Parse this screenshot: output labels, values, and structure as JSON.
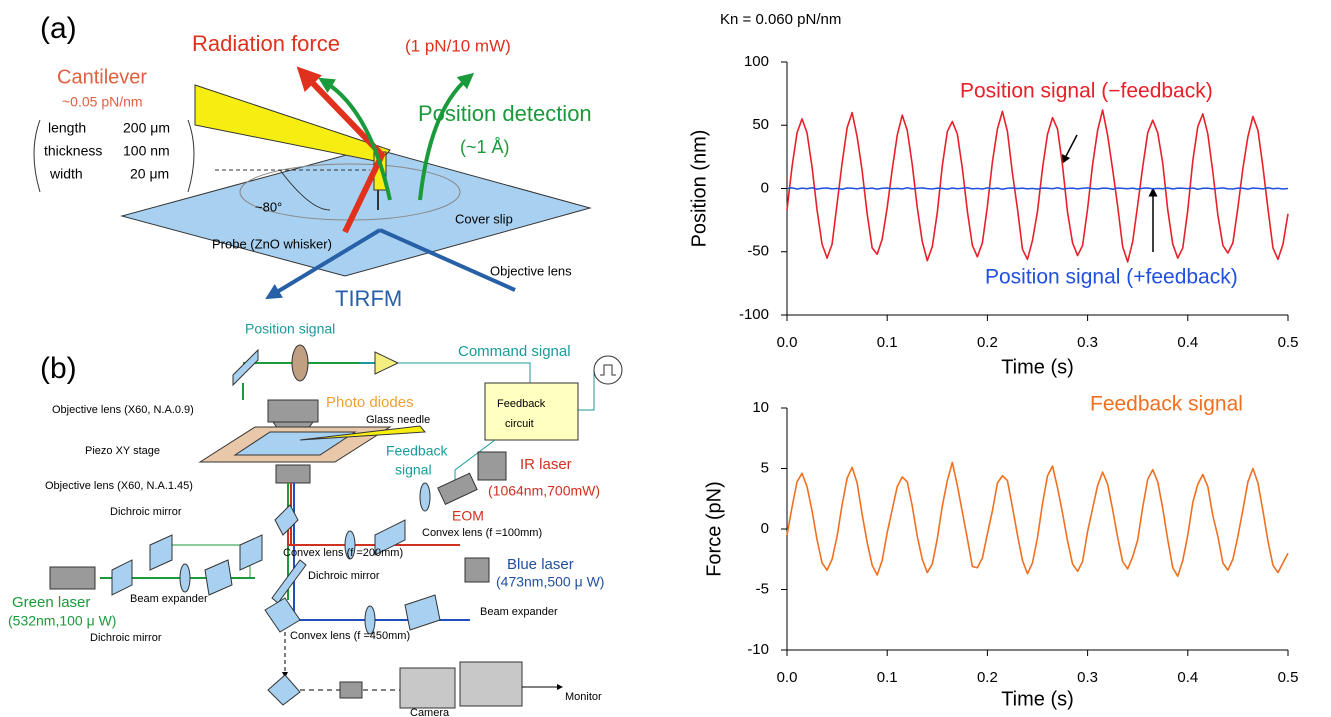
{
  "chart_data": [
    {
      "type": "line",
      "subtitle": "Kn = 0.060 pN/nm",
      "xlabel": "Time (s)",
      "ylabel": "Position (nm)",
      "xlim": [
        0,
        0.5
      ],
      "xticks": [
        {
          "value": 0,
          "label": "0.0"
        },
        0.1,
        0.2,
        0.3,
        0.4,
        0.5
      ],
      "ylim": [
        -100,
        100
      ],
      "yticks": [
        -100,
        -50,
        0,
        50,
        100
      ],
      "x": [
        0,
        0.005,
        0.01,
        0.015,
        0.02,
        0.025,
        0.03,
        0.035,
        0.04,
        0.045,
        0.05,
        0.055,
        0.06,
        0.065,
        0.07,
        0.075,
        0.08,
        0.085,
        0.09,
        0.095,
        0.1,
        0.105,
        0.11,
        0.115,
        0.12,
        0.125,
        0.13,
        0.135,
        0.14,
        0.145,
        0.15,
        0.155,
        0.16,
        0.165,
        0.17,
        0.175,
        0.18,
        0.185,
        0.19,
        0.195,
        0.2,
        0.205,
        0.21,
        0.215,
        0.22,
        0.225,
        0.23,
        0.235,
        0.24,
        0.245,
        0.25,
        0.255,
        0.26,
        0.265,
        0.27,
        0.275,
        0.28,
        0.285,
        0.29,
        0.295,
        0.3,
        0.305,
        0.31,
        0.315,
        0.32,
        0.325,
        0.33,
        0.335,
        0.34,
        0.345,
        0.35,
        0.355,
        0.36,
        0.365,
        0.37,
        0.375,
        0.38,
        0.385,
        0.39,
        0.395,
        0.4,
        0.405,
        0.41,
        0.415,
        0.42,
        0.425,
        0.43,
        0.435,
        0.44,
        0.445,
        0.45,
        0.455,
        0.46,
        0.465,
        0.47,
        0.475,
        0.48,
        0.485,
        0.49,
        0.495,
        0.5
      ],
      "series": [
        {
          "name": "Position signal (−feedback)",
          "color": "#e8202a",
          "values": [
            -17,
            17,
            44,
            55,
            44,
            17,
            -17,
            -44,
            -55,
            -44,
            -12,
            20,
            48,
            60,
            41,
            14,
            -20,
            -47,
            -52,
            -40,
            -15,
            15,
            42,
            58,
            46,
            19,
            -15,
            -42,
            -57,
            -46,
            -19,
            18,
            45,
            53,
            43,
            16,
            -18,
            -45,
            -54,
            -43,
            -14,
            21,
            47,
            61,
            45,
            12,
            -16,
            -48,
            -56,
            -41,
            -18,
            16,
            43,
            56,
            47,
            18,
            -19,
            -43,
            -53,
            -45,
            -16,
            19,
            46,
            62,
            42,
            15,
            -14,
            -46,
            -58,
            -42,
            -13,
            17,
            44,
            54,
            44,
            20,
            -17,
            -44,
            -55,
            -47,
            -17,
            22,
            49,
            59,
            43,
            13,
            -21,
            -45,
            -51,
            -43,
            -15,
            16,
            41,
            57,
            46,
            17,
            -16,
            -47,
            -56,
            -44,
            -20
          ]
        },
        {
          "name": "Position signal (+feedback)",
          "color": "#2050e0",
          "values": [
            0,
            0.5,
            -0.4,
            0.3,
            -0.2,
            0.6,
            -0.5,
            0.2,
            0.4,
            -0.3,
            0.1,
            -0.6,
            0.4,
            0.2,
            -0.3,
            0.5,
            -0.1,
            0.3,
            -0.5,
            0.2,
            0.4,
            -0.2,
            0.1,
            -0.4,
            0.6,
            -0.3,
            0.2,
            0.5,
            -0.1,
            -0.4,
            0.3,
            0.1,
            -0.5,
            0.4,
            -0.2,
            0.2,
            0.6,
            -0.3,
            0.1,
            -0.4,
            0.5,
            -0.2,
            0.3,
            -0.6,
            0.2,
            0.4,
            -0.1,
            0.3,
            -0.3,
            0.1,
            -0.5,
            0.4,
            0.2,
            -0.2,
            0.6,
            -0.4,
            0.1,
            0.3,
            -0.3,
            0.2,
            0.5,
            -0.1,
            -0.4,
            0.3,
            0.2,
            -0.6,
            0.4,
            0.1,
            -0.2,
            0.3,
            -0.5,
            0.2,
            0.4,
            -0.3,
            0.1,
            -0.2,
            0.5,
            -0.4,
            0.3,
            0.2,
            -0.1,
            0.4,
            -0.6,
            0.2,
            0.3,
            -0.3,
            0.1,
            0.5,
            -0.2,
            -0.4,
            0.3,
            0.2,
            -0.5,
            0.4,
            0.1,
            -0.3,
            0.6,
            -0.2,
            0.2,
            -0.4,
            0
          ]
        }
      ]
    },
    {
      "type": "line",
      "xlabel": "Time (s)",
      "ylabel": "Force (pN)",
      "xlim": [
        0,
        0.5
      ],
      "xticks": [
        {
          "value": 0,
          "label": "0.0"
        },
        0.1,
        0.2,
        0.3,
        0.4,
        0.5
      ],
      "ylim": [
        -10,
        10
      ],
      "yticks": [
        -10,
        -5,
        0,
        5,
        10
      ],
      "x": [
        0,
        0.005,
        0.01,
        0.015,
        0.02,
        0.025,
        0.03,
        0.035,
        0.04,
        0.045,
        0.05,
        0.055,
        0.06,
        0.065,
        0.07,
        0.075,
        0.08,
        0.085,
        0.09,
        0.095,
        0.1,
        0.105,
        0.11,
        0.115,
        0.12,
        0.125,
        0.13,
        0.135,
        0.14,
        0.145,
        0.15,
        0.155,
        0.16,
        0.165,
        0.17,
        0.175,
        0.18,
        0.185,
        0.19,
        0.195,
        0.2,
        0.205,
        0.21,
        0.215,
        0.22,
        0.225,
        0.23,
        0.235,
        0.24,
        0.245,
        0.25,
        0.255,
        0.26,
        0.265,
        0.27,
        0.275,
        0.28,
        0.285,
        0.29,
        0.295,
        0.3,
        0.305,
        0.31,
        0.315,
        0.32,
        0.325,
        0.33,
        0.335,
        0.34,
        0.345,
        0.35,
        0.355,
        0.36,
        0.365,
        0.37,
        0.375,
        0.38,
        0.385,
        0.39,
        0.395,
        0.4,
        0.405,
        0.41,
        0.415,
        0.42,
        0.425,
        0.43,
        0.435,
        0.44,
        0.445,
        0.45,
        0.455,
        0.46,
        0.465,
        0.47,
        0.475,
        0.48,
        0.485,
        0.49,
        0.495,
        0.5
      ],
      "series": [
        {
          "name": "Feedback signal",
          "color": "#f07020",
          "values": [
            -0.5,
            1.8,
            3.9,
            4.6,
            3.5,
            1.5,
            -0.9,
            -2.8,
            -3.4,
            -2.5,
            -0.6,
            2.0,
            4.2,
            5.1,
            3.8,
            1.2,
            -1.1,
            -3.0,
            -3.8,
            -2.6,
            -0.3,
            1.6,
            3.5,
            4.3,
            3.9,
            1.9,
            -0.6,
            -2.5,
            -3.6,
            -2.9,
            -0.8,
            1.9,
            4.0,
            5.5,
            3.6,
            1.4,
            -0.8,
            -3.1,
            -3.2,
            -2.4,
            -0.4,
            1.5,
            3.8,
            4.4,
            4.0,
            1.8,
            -0.5,
            -2.6,
            -3.7,
            -2.8,
            -0.7,
            2.1,
            4.4,
            5.2,
            3.4,
            1.3,
            -1.0,
            -2.9,
            -3.5,
            -2.7,
            -0.2,
            1.7,
            3.6,
            4.7,
            3.7,
            1.6,
            -0.7,
            -2.7,
            -3.3,
            -2.3,
            -0.9,
            1.8,
            4.1,
            4.9,
            3.9,
            1.7,
            -0.9,
            -3.2,
            -3.9,
            -2.6,
            -0.5,
            2.2,
            3.7,
            4.5,
            3.5,
            1.1,
            -0.6,
            -2.8,
            -3.4,
            -2.5,
            -0.6,
            1.6,
            3.9,
            5.0,
            3.8,
            1.5,
            -1.0,
            -3.0,
            -3.6,
            -2.8,
            -2.0
          ]
        }
      ]
    }
  ],
  "diagram_a": {
    "panel": "(a)",
    "radiation_force": "Radiation force",
    "radiation_value": "(1 pN/10 mW)",
    "cantilever": "Cantilever",
    "stiffness": "~0.05 pN/nm",
    "specs": [
      [
        "length",
        "200 μm"
      ],
      [
        "thickness",
        "100 nm"
      ],
      [
        "width",
        "20 μm"
      ]
    ],
    "position_detection": "Position detection",
    "resolution": "(~1 Å)",
    "angle": "~80°",
    "cover_slip": "Cover slip",
    "probe": "Probe (ZnO whisker)",
    "objective": "Objective lens",
    "tirfm": "TIRFM"
  },
  "diagram_b": {
    "panel": "(b)",
    "position_signal": "Position signal",
    "command_signal": "Command signal",
    "objective_top": "Objective lens (X60, N.A.0.9)",
    "photo_diodes": "Photo diodes",
    "glass_needle": "Glass needle",
    "feedback_circuit": [
      "Feedback",
      "circuit"
    ],
    "piezo": "Piezo XY stage",
    "feedback_signal": [
      "Feedback",
      "signal"
    ],
    "ir_laser": "IR laser",
    "ir_spec": "(1064nm,700mW)",
    "objective_bottom": "Objective lens (X60, N.A.1.45)",
    "eom": "EOM",
    "dichroic_1": "Dichroic mirror",
    "convex_100": "Convex lens (f =100mm)",
    "convex_200": "Convex lens (f =200mm)",
    "dichroic_2": "Dichroic mirror",
    "blue_laser": "Blue laser",
    "blue_spec": "(473nm,500 μ W)",
    "green_laser": "Green laser",
    "green_spec": "(532nm,100 μ W)",
    "beam_expander_1": "Beam expander",
    "beam_expander_2": "Beam expander",
    "dichroic_3": "Dichroic mirror",
    "convex_450": "Convex lens (f =450mm)",
    "monitor": "Monitor",
    "camera": "Camera"
  }
}
